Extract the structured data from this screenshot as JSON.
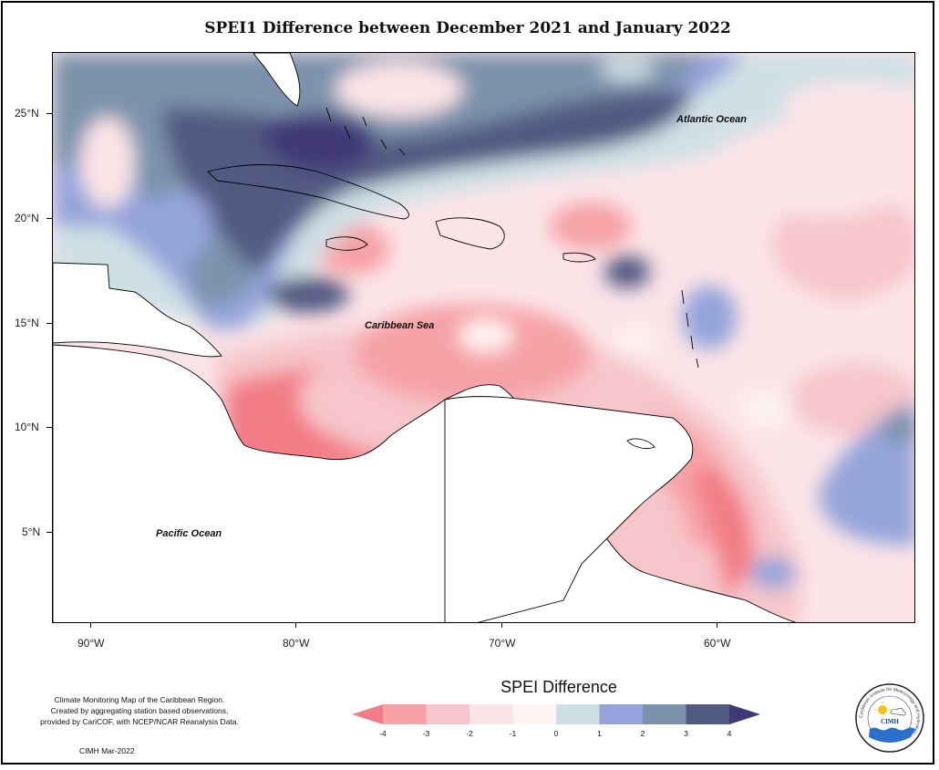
{
  "title": "SPEI1 Difference between December 2021 and January 2022",
  "map": {
    "labels": {
      "atlantic": "Atlantic Ocean",
      "caribbean": "Caribbean Sea",
      "pacific": "Pacific Ocean"
    },
    "lat_ticks": [
      "25°N",
      "20°N",
      "15°N",
      "10°N",
      "5°N"
    ],
    "lon_ticks": [
      "90°W",
      "80°W",
      "70°W",
      "60°W"
    ],
    "extent": {
      "lon": [
        -92,
        -50
      ],
      "lat": [
        1,
        28
      ]
    }
  },
  "legend": {
    "title": "SPEI Difference",
    "labels": [
      "-4",
      "-3",
      "-2",
      "-1",
      "0",
      "1",
      "2",
      "3",
      "4"
    ],
    "colors": [
      "#f27d86",
      "#f6a2a6",
      "#f6c6cb",
      "#fbe4e8",
      "#fff3f4",
      "#cfe0e5",
      "#94a4da",
      "#7b93ab",
      "#525a82",
      "#3f3977"
    ]
  },
  "credit": {
    "line1": "Climate Monitoring Map of the Caribbean Region.",
    "line2": "Created by aggregating station based observations,",
    "line3": "provided by CariCOF, with NCEP/NCAR Reanalysis Data.",
    "date": "CIMH Mar-2022"
  },
  "logo": {
    "ring_text": "Caribbean Institute for Meteorology and Hydrology",
    "name": "CIMH"
  }
}
